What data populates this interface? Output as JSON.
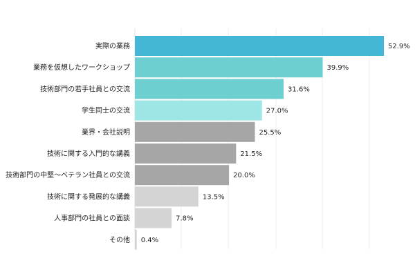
{
  "chart_data": {
    "type": "bar",
    "orientation": "horizontal",
    "categories": [
      "実際の業務",
      "業務を仮想したワークショップ",
      "技術部門の若手社員との交流",
      "学生同士の交流",
      "業界・会社説明",
      "技術に関する入門的な講義",
      "技術部門の中堅～ベテラン社員との交流",
      "技術に関する発展的な講義",
      "人事部門の社員との面談",
      "その他"
    ],
    "values": [
      52.9,
      39.9,
      31.6,
      27.0,
      25.5,
      21.5,
      20.0,
      13.5,
      7.8,
      0.4
    ],
    "value_labels": [
      "52.9%",
      "39.9%",
      "31.6%",
      "27.0%",
      "25.5%",
      "21.5%",
      "20.0%",
      "13.5%",
      "7.8%",
      "0.4%"
    ],
    "bar_colors": [
      "#44b6d6",
      "#6ecfd0",
      "#6ecfd0",
      "#9ee6e6",
      "#a6a6a6",
      "#a6a6a6",
      "#a6a6a6",
      "#d4d4d4",
      "#d4d4d4",
      "#d4d4d4"
    ],
    "xlim": [
      0,
      55
    ],
    "grid": true,
    "title": "",
    "xlabel": "",
    "ylabel": ""
  }
}
